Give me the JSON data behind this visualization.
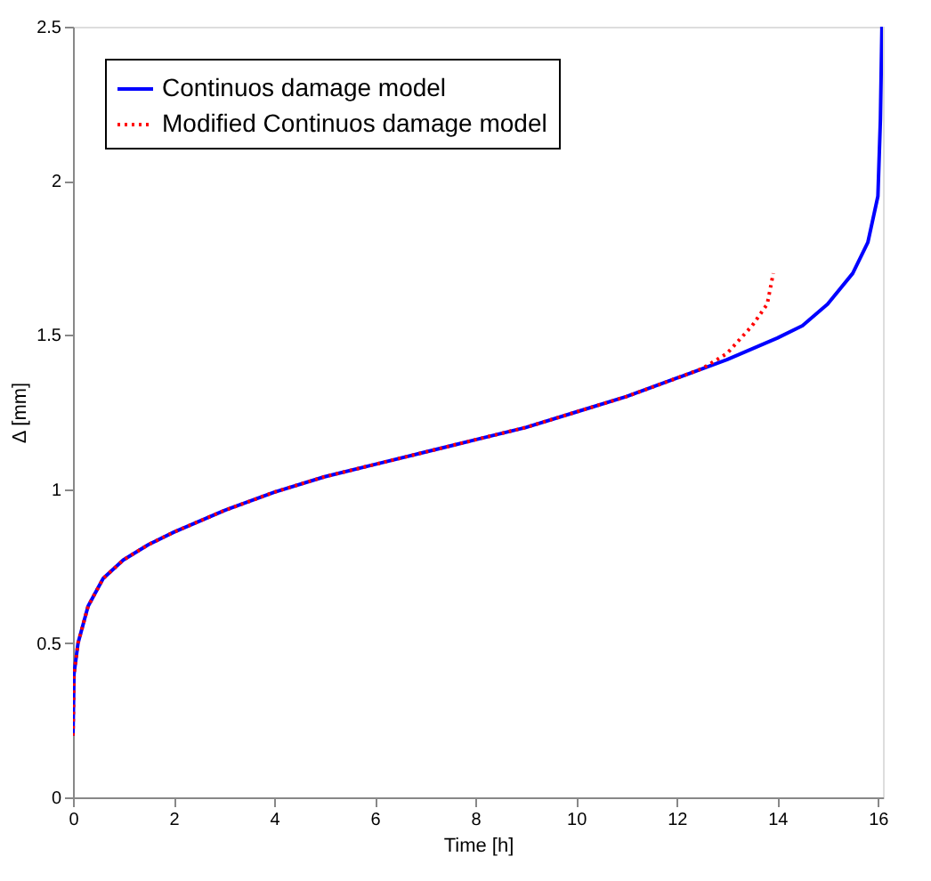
{
  "chart_data": {
    "type": "line",
    "xlabel": "Time [h]",
    "ylabel": "Δ [mm]",
    "xlim": [
      0,
      16.1
    ],
    "ylim": [
      0,
      2.5
    ],
    "xticks": [
      0,
      2,
      4,
      6,
      8,
      10,
      12,
      14,
      16
    ],
    "yticks": [
      0,
      0.5,
      1,
      1.5,
      2,
      2.5
    ],
    "grid": false,
    "legend": "top left",
    "series": [
      {
        "name": "Continuos damage model",
        "color": "#0000ff",
        "line_style": "solid",
        "x": [
          0,
          0.02,
          0.1,
          0.3,
          0.6,
          1,
          1.5,
          2,
          3,
          4,
          5,
          6,
          7,
          8,
          9,
          10,
          11,
          12,
          13,
          14,
          14.5,
          15,
          15.5,
          15.8,
          16.0,
          16.05,
          16.08
        ],
        "values": [
          0.2,
          0.4,
          0.5,
          0.62,
          0.71,
          0.77,
          0.82,
          0.86,
          0.93,
          0.99,
          1.04,
          1.08,
          1.12,
          1.16,
          1.2,
          1.25,
          1.3,
          1.36,
          1.42,
          1.49,
          1.53,
          1.6,
          1.7,
          1.8,
          1.95,
          2.2,
          2.5
        ]
      },
      {
        "name": "Modified Continuos damage model",
        "color": "#ff0000",
        "line_style": "dotted",
        "x": [
          0,
          0.02,
          0.1,
          0.3,
          0.6,
          1,
          1.5,
          2,
          3,
          4,
          5,
          6,
          7,
          8,
          9,
          10,
          11,
          12,
          12.5,
          13,
          13.5,
          13.8,
          13.92
        ],
        "values": [
          0.2,
          0.4,
          0.5,
          0.62,
          0.71,
          0.77,
          0.82,
          0.86,
          0.93,
          0.99,
          1.04,
          1.08,
          1.12,
          1.16,
          1.2,
          1.25,
          1.3,
          1.36,
          1.39,
          1.44,
          1.53,
          1.6,
          1.7
        ]
      }
    ]
  }
}
